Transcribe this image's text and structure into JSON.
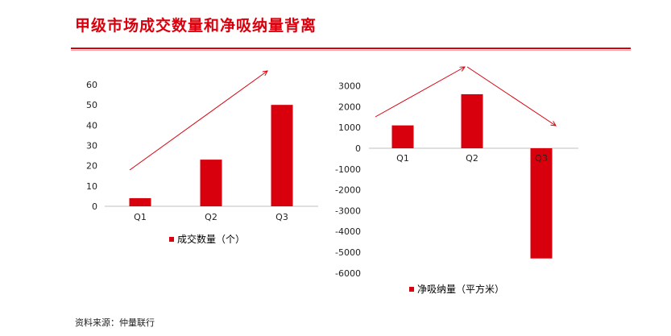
{
  "title": "甲级市场成交数量和净吸纳量背离",
  "source": "资料来源：仲量联行",
  "accent_color": "#d9000d",
  "chart_data": [
    {
      "type": "bar",
      "categories": [
        "Q1",
        "Q2",
        "Q3"
      ],
      "series": [
        {
          "name": "成交数量（个）",
          "values": [
            4,
            23,
            50
          ]
        }
      ],
      "ylim": [
        0,
        60
      ],
      "yticks": [
        0,
        10,
        20,
        30,
        40,
        50,
        60
      ],
      "legend_position": "bottom",
      "grid": false,
      "trend_arrow": "up"
    },
    {
      "type": "bar",
      "categories": [
        "Q1",
        "Q2",
        "Q3"
      ],
      "series": [
        {
          "name": "净吸纳量（平方米）",
          "values": [
            1100,
            2600,
            -5300
          ]
        }
      ],
      "ylim": [
        -6000,
        3000
      ],
      "yticks": [
        3000,
        2000,
        1000,
        0,
        -1000,
        -2000,
        -3000,
        -4000,
        -5000,
        -6000
      ],
      "legend_position": "bottom",
      "grid": false,
      "trend_arrow": "up-then-down"
    }
  ]
}
